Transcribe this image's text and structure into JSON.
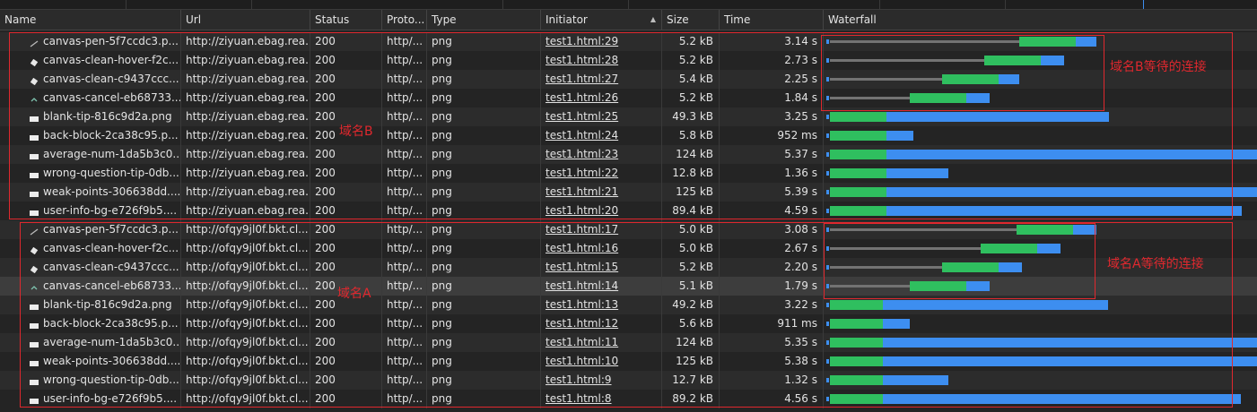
{
  "columns": [
    {
      "key": "name",
      "label": "Name"
    },
    {
      "key": "url",
      "label": "Url"
    },
    {
      "key": "status",
      "label": "Status"
    },
    {
      "key": "proto",
      "label": "Proto..."
    },
    {
      "key": "type",
      "label": "Type"
    },
    {
      "key": "initiator",
      "label": "Initiator",
      "sort": "▲"
    },
    {
      "key": "size",
      "label": "Size"
    },
    {
      "key": "time",
      "label": "Time"
    },
    {
      "key": "waterfall",
      "label": "Waterfall"
    }
  ],
  "annotations": {
    "domain_b_label": "域名B",
    "domain_a_label": "域名A",
    "domain_b_wait": "域名B等待的连接",
    "domain_a_wait": "域名A等待的连接"
  },
  "colors": {
    "box": "#e0282e",
    "green": "#2fbf5f",
    "blue": "#3d8ef0",
    "wait": "#737373"
  },
  "rows": [
    {
      "name": "canvas-pen-5f7ccdc3.p...",
      "icon": "pen-icon",
      "url": "http://ziyuan.ebag.rea...",
      "status": "200",
      "proto": "http/...",
      "type": "png",
      "initiator": "test1.html:29",
      "size": "5.2 kB",
      "time": "3.14 s",
      "wait": 0.64,
      "green": 0.19,
      "blue": 0.07
    },
    {
      "name": "canvas-clean-hover-f2c...",
      "icon": "eraser-icon",
      "url": "http://ziyuan.ebag.rea...",
      "status": "200",
      "proto": "http/...",
      "type": "png",
      "initiator": "test1.html:28",
      "size": "5.2 kB",
      "time": "2.73 s",
      "wait": 0.52,
      "green": 0.19,
      "blue": 0.08
    },
    {
      "name": "canvas-clean-c9437ccc...",
      "icon": "eraser-icon",
      "url": "http://ziyuan.ebag.rea...",
      "status": "200",
      "proto": "http/...",
      "type": "png",
      "initiator": "test1.html:27",
      "size": "5.4 kB",
      "time": "2.25 s",
      "wait": 0.38,
      "green": 0.19,
      "blue": 0.07
    },
    {
      "name": "canvas-cancel-eb68733...",
      "icon": "cancel-icon",
      "url": "http://ziyuan.ebag.rea...",
      "status": "200",
      "proto": "http/...",
      "type": "png",
      "initiator": "test1.html:26",
      "size": "5.2 kB",
      "time": "1.84 s",
      "wait": 0.27,
      "green": 0.19,
      "blue": 0.08
    },
    {
      "name": "blank-tip-816c9d2a.png",
      "icon": "image-icon",
      "url": "http://ziyuan.ebag.rea...",
      "status": "200",
      "proto": "http/...",
      "type": "png",
      "initiator": "test1.html:25",
      "size": "49.3 kB",
      "time": "3.25 s",
      "wait": 0,
      "green": 0.19,
      "blue": 0.75
    },
    {
      "name": "back-block-2ca38c95.p...",
      "icon": "image-icon",
      "url": "http://ziyuan.ebag.rea...",
      "status": "200",
      "proto": "http/...",
      "type": "png",
      "initiator": "test1.html:24",
      "size": "5.8 kB",
      "time": "952 ms",
      "wait": 0,
      "green": 0.19,
      "blue": 0.09
    },
    {
      "name": "average-num-1da5b3c0...",
      "icon": "image-icon",
      "url": "http://ziyuan.ebag.rea...",
      "status": "200",
      "proto": "http/...",
      "type": "png",
      "initiator": "test1.html:23",
      "size": "124 kB",
      "time": "5.37 s",
      "wait": 0,
      "green": 0.19,
      "blue": 1.5
    },
    {
      "name": "wrong-question-tip-0db...",
      "icon": "image-icon",
      "url": "http://ziyuan.ebag.rea...",
      "status": "200",
      "proto": "http/...",
      "type": "png",
      "initiator": "test1.html:22",
      "size": "12.8 kB",
      "time": "1.36 s",
      "wait": 0,
      "green": 0.19,
      "blue": 0.21
    },
    {
      "name": "weak-points-306638dd....",
      "icon": "image-icon",
      "url": "http://ziyuan.ebag.rea...",
      "status": "200",
      "proto": "http/...",
      "type": "png",
      "initiator": "test1.html:21",
      "size": "125 kB",
      "time": "5.39 s",
      "wait": 0,
      "green": 0.19,
      "blue": 1.5
    },
    {
      "name": "user-info-bg-e726f9b5....",
      "icon": "image-icon",
      "url": "http://ziyuan.ebag.rea...",
      "status": "200",
      "proto": "http/...",
      "type": "png",
      "initiator": "test1.html:20",
      "size": "89.4 kB",
      "time": "4.59 s",
      "wait": 0,
      "green": 0.19,
      "blue": 1.2
    },
    {
      "name": "canvas-pen-5f7ccdc3.p...",
      "icon": "pen-icon",
      "url": "http://ofqy9jl0f.bkt.cl...",
      "status": "200",
      "proto": "http/...",
      "type": "png",
      "initiator": "test1.html:17",
      "size": "5.0 kB",
      "time": "3.08 s",
      "wait": 0.63,
      "green": 0.19,
      "blue": 0.08
    },
    {
      "name": "canvas-clean-hover-f2c...",
      "icon": "eraser-icon",
      "url": "http://ofqy9jl0f.bkt.cl...",
      "status": "200",
      "proto": "http/...",
      "type": "png",
      "initiator": "test1.html:16",
      "size": "5.0 kB",
      "time": "2.67 s",
      "wait": 0.51,
      "green": 0.19,
      "blue": 0.08
    },
    {
      "name": "canvas-clean-c9437ccc...",
      "icon": "eraser-icon",
      "url": "http://ofqy9jl0f.bkt.cl...",
      "status": "200",
      "proto": "http/...",
      "type": "png",
      "initiator": "test1.html:15",
      "size": "5.2 kB",
      "time": "2.20 s",
      "wait": 0.38,
      "green": 0.19,
      "blue": 0.08
    },
    {
      "name": "canvas-cancel-eb68733...",
      "icon": "cancel-icon",
      "url": "http://ofqy9jl0f.bkt.cl...",
      "status": "200",
      "proto": "http/...",
      "type": "png",
      "initiator": "test1.html:14",
      "size": "5.1 kB",
      "time": "1.79 s",
      "wait": 0.27,
      "green": 0.19,
      "blue": 0.08
    },
    {
      "name": "blank-tip-816c9d2a.png",
      "icon": "image-icon",
      "url": "http://ofqy9jl0f.bkt.cl...",
      "status": "200",
      "proto": "http/...",
      "type": "png",
      "initiator": "test1.html:13",
      "size": "49.2 kB",
      "time": "3.22 s",
      "wait": 0,
      "green": 0.18,
      "blue": 0.76
    },
    {
      "name": "back-block-2ca38c95.p...",
      "icon": "image-icon",
      "url": "http://ofqy9jl0f.bkt.cl...",
      "status": "200",
      "proto": "http/...",
      "type": "png",
      "initiator": "test1.html:12",
      "size": "5.6 kB",
      "time": "911 ms",
      "wait": 0,
      "green": 0.18,
      "blue": 0.09
    },
    {
      "name": "average-num-1da5b3c0...",
      "icon": "image-icon",
      "url": "http://ofqy9jl0f.bkt.cl...",
      "status": "200",
      "proto": "http/...",
      "type": "png",
      "initiator": "test1.html:11",
      "size": "124 kB",
      "time": "5.35 s",
      "wait": 0,
      "green": 0.18,
      "blue": 1.5
    },
    {
      "name": "weak-points-306638dd....",
      "icon": "image-icon",
      "url": "http://ofqy9jl0f.bkt.cl...",
      "status": "200",
      "proto": "http/...",
      "type": "png",
      "initiator": "test1.html:10",
      "size": "125 kB",
      "time": "5.38 s",
      "wait": 0,
      "green": 0.18,
      "blue": 1.5
    },
    {
      "name": "wrong-question-tip-0db...",
      "icon": "image-icon",
      "url": "http://ofqy9jl0f.bkt.cl...",
      "status": "200",
      "proto": "http/...",
      "type": "png",
      "initiator": "test1.html:9",
      "size": "12.7 kB",
      "time": "1.32 s",
      "wait": 0,
      "green": 0.18,
      "blue": 0.22
    },
    {
      "name": "user-info-bg-e726f9b5....",
      "icon": "image-icon",
      "url": "http://ofqy9jl0f.bkt.cl...",
      "status": "200",
      "proto": "http/...",
      "type": "png",
      "initiator": "test1.html:8",
      "size": "89.2 kB",
      "time": "4.56 s",
      "wait": 0,
      "green": 0.18,
      "blue": 1.21
    }
  ]
}
